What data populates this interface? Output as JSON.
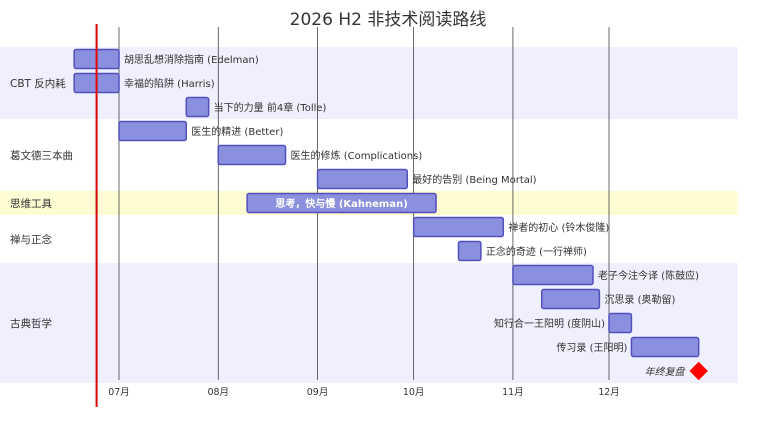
{
  "chart_data": {
    "type": "gantt",
    "title": "2026 H2 非技术阅读路线",
    "x_axis": {
      "start": "2026-06-24",
      "end": "2026-12-31",
      "ticks": [
        {
          "date": "2026-07-01",
          "label": "07月"
        },
        {
          "date": "2026-08-01",
          "label": "08月"
        },
        {
          "date": "2026-09-01",
          "label": "09月"
        },
        {
          "date": "2026-10-01",
          "label": "10月"
        },
        {
          "date": "2026-11-01",
          "label": "11月"
        },
        {
          "date": "2026-12-01",
          "label": "12月"
        }
      ]
    },
    "today_marker": "2026-06-24",
    "sections": [
      {
        "name": "CBT 反内耗",
        "tasks": [
          {
            "name": "胡思乱想消除指南 (Edelman)",
            "start": "2026-06-17",
            "end": "2026-07-01"
          },
          {
            "name": "幸福的陷阱 (Harris)",
            "start": "2026-06-17",
            "end": "2026-07-01"
          },
          {
            "name": "当下的力量 前4章 (Tolle)",
            "start": "2026-07-22",
            "end": "2026-07-29"
          }
        ]
      },
      {
        "name": "葛文德三本曲",
        "tasks": [
          {
            "name": "医生的精进 (Better)",
            "start": "2026-07-01",
            "end": "2026-07-22"
          },
          {
            "name": "医生的修炼 (Complications)",
            "start": "2026-08-01",
            "end": "2026-08-22"
          },
          {
            "name": "最好的告别 (Being Mortal)",
            "start": "2026-09-01",
            "end": "2026-09-29"
          }
        ]
      },
      {
        "name": "思维工具",
        "tasks": [
          {
            "name": "思考，快与慢 (Kahneman)",
            "start": "2026-08-10",
            "end": "2026-10-08",
            "label_inside": true
          }
        ]
      },
      {
        "name": "禅与正念",
        "tasks": [
          {
            "name": "禅者的初心 (铃木俊隆)",
            "start": "2026-10-01",
            "end": "2026-10-29"
          },
          {
            "name": "正念的奇迹 (一行禅师)",
            "start": "2026-10-15",
            "end": "2026-10-22"
          }
        ]
      },
      {
        "name": "古典哲学",
        "tasks": [
          {
            "name": "老子今注今译 (陈鼓应)",
            "start": "2026-11-01",
            "end": "2026-11-26"
          },
          {
            "name": "沉思录 (奥勒留)",
            "start": "2026-11-10",
            "end": "2026-11-28"
          },
          {
            "name": "知行合一王阳明 (度阴山)",
            "start": "2026-12-01",
            "end": "2026-12-08",
            "label_side": "left"
          },
          {
            "name": "传习录 (王阳明)",
            "start": "2026-12-08",
            "end": "2026-12-29",
            "label_side": "left"
          },
          {
            "name": "年终复盘",
            "date": "2026-12-29",
            "milestone": true
          }
        ]
      }
    ],
    "colors": {
      "bar_fill": "#8a90dd",
      "bar_stroke": "#534fbc",
      "section_band_a": "#efeffd",
      "section_band_b": "#ffffff",
      "section_band_highlight": "#fffbd2",
      "grid": "#222222",
      "today_line": "#e00000",
      "milestone": "#ff0000"
    }
  }
}
